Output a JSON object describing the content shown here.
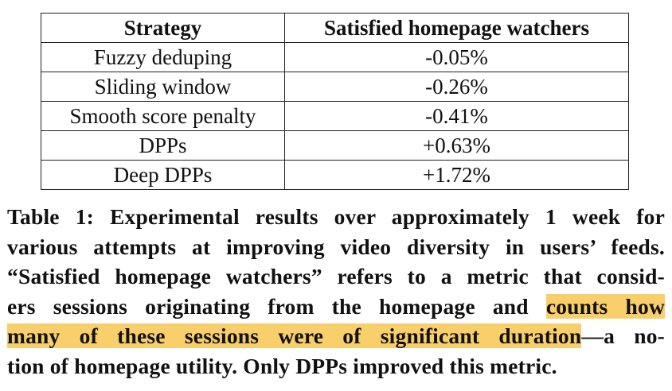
{
  "table": {
    "headers": [
      "Strategy",
      "Satisfied homepage watchers"
    ],
    "rows": [
      [
        "Fuzzy deduping",
        "-0.05%"
      ],
      [
        "Sliding window",
        "-0.26%"
      ],
      [
        "Smooth score penalty",
        "-0.41%"
      ],
      [
        "DPPs",
        "+0.63%"
      ],
      [
        "Deep DPPs",
        "+1.72%"
      ]
    ]
  },
  "caption": {
    "line1": "Table 1: Experimental results over approximately 1 week for",
    "line2": "various attempts at improving video diversity in users’ feeds.",
    "line3": "“Satisfied homepage watchers” refers to a metric that consid-",
    "line4_pre": "ers sessions originating from the homepage and ",
    "line4_hl": "counts how",
    "line5_hl": "many of these sessions were of significant duration",
    "line5_post": "—a no-",
    "line6": "tion of homepage utility. Only DPPs improved this metric."
  },
  "colors": {
    "highlight": "#f9cf6b",
    "text": "#111111",
    "border": "#222222"
  }
}
